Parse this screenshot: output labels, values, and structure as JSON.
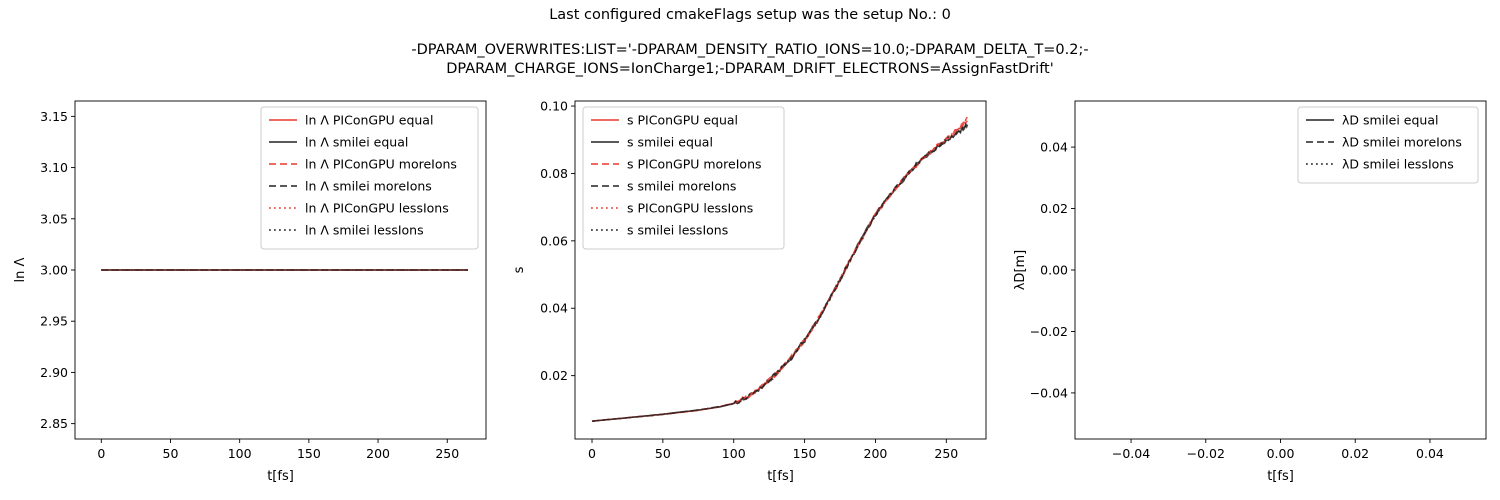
{
  "figure": {
    "title_line1": "Last configured cmakeFlags setup was the setup No.: 0",
    "title_line2": "-DPARAM_OVERWRITES:LIST='-DPARAM_DENSITY_RATIO_IONS=10.0;-DPARAM_DELTA_T=0.2;-",
    "title_line3": "DPARAM_CHARGE_IONS=IonCharge1;-DPARAM_DRIFT_ELECTRONS=AssignFastDrift'"
  },
  "colors": {
    "red": "#e8392e",
    "black": "#222222"
  },
  "chart_data": [
    {
      "type": "line",
      "xlabel": "t[fs]",
      "ylabel": "ln Λ",
      "xlim": [
        -19,
        278
      ],
      "ylim": [
        2.835,
        3.165
      ],
      "xticks": [
        0,
        50,
        100,
        150,
        200,
        250
      ],
      "yticks": [
        2.85,
        2.9,
        2.95,
        3.0,
        3.05,
        3.1,
        3.15
      ],
      "ytick_labels": [
        "2.85",
        "2.90",
        "2.95",
        "3.00",
        "3.05",
        "3.10",
        "3.15"
      ],
      "legend_loc": "upper-right",
      "series": [
        {
          "name": "ln Λ PIConGPU equal",
          "color": "red",
          "dash": "solid",
          "x": [
            0,
            265
          ],
          "y": [
            3.0,
            3.0
          ]
        },
        {
          "name": "ln Λ smilei equal",
          "color": "black",
          "dash": "solid",
          "x": [
            0,
            265
          ],
          "y": [
            3.0,
            3.0
          ]
        },
        {
          "name": "ln Λ PIConGPU moreIons",
          "color": "red",
          "dash": "dashed",
          "x": [
            0,
            265
          ],
          "y": [
            3.0,
            3.0
          ]
        },
        {
          "name": "ln Λ smilei moreIons",
          "color": "black",
          "dash": "dashed",
          "x": [
            0,
            265
          ],
          "y": [
            3.0,
            3.0
          ]
        },
        {
          "name": "ln Λ PIConGPU lessIons",
          "color": "red",
          "dash": "dotted",
          "x": [
            0,
            265
          ],
          "y": [
            3.0,
            3.0
          ]
        },
        {
          "name": "ln Λ smilei lessIons",
          "color": "black",
          "dash": "dotted",
          "x": [
            0,
            265
          ],
          "y": [
            3.0,
            3.0
          ]
        }
      ]
    },
    {
      "type": "line",
      "xlabel": "t[fs]",
      "ylabel": "s",
      "xlim": [
        -12,
        278
      ],
      "ylim": [
        0.0012,
        0.1015
      ],
      "xticks": [
        0,
        50,
        100,
        150,
        200,
        250
      ],
      "yticks": [
        0.02,
        0.04,
        0.06,
        0.08,
        0.1
      ],
      "ytick_labels": [
        "0.02",
        "0.04",
        "0.06",
        "0.08",
        "0.10"
      ],
      "legend_loc": "upper-left",
      "series": [
        {
          "name": "s PIConGPU equal",
          "color": "red",
          "dash": "solid",
          "x": [
            0,
            25,
            50,
            75,
            90,
            100,
            110,
            120,
            130,
            140,
            150,
            160,
            170,
            180,
            190,
            200,
            210,
            220,
            230,
            240,
            250,
            260,
            265
          ],
          "y": [
            0.0065,
            0.0075,
            0.0085,
            0.0097,
            0.0108,
            0.0118,
            0.0138,
            0.0168,
            0.0205,
            0.025,
            0.0305,
            0.037,
            0.0445,
            0.0525,
            0.0605,
            0.0678,
            0.0735,
            0.0785,
            0.083,
            0.0868,
            0.09,
            0.0935,
            0.0955
          ]
        },
        {
          "name": "s smilei equal",
          "color": "black",
          "dash": "solid",
          "x": [
            0,
            25,
            50,
            75,
            90,
            100,
            110,
            120,
            130,
            140,
            150,
            160,
            170,
            180,
            190,
            200,
            210,
            220,
            230,
            240,
            250,
            260,
            265
          ],
          "y": [
            0.0065,
            0.0075,
            0.0086,
            0.0098,
            0.0107,
            0.0117,
            0.0137,
            0.0166,
            0.0207,
            0.0248,
            0.0307,
            0.0368,
            0.0447,
            0.0523,
            0.0607,
            0.0676,
            0.0737,
            0.0783,
            0.0833,
            0.0865,
            0.0898,
            0.0925,
            0.0945
          ]
        },
        {
          "name": "s PIConGPU moreIons",
          "color": "red",
          "dash": "dashed",
          "x": [
            0,
            25,
            50,
            75,
            90,
            100,
            110,
            120,
            130,
            140,
            150,
            160,
            170,
            180,
            190,
            200,
            210,
            220,
            230,
            240,
            250,
            260,
            265
          ],
          "y": [
            0.0065,
            0.0075,
            0.0085,
            0.0097,
            0.0108,
            0.0118,
            0.0139,
            0.0169,
            0.0206,
            0.0252,
            0.0306,
            0.0372,
            0.0446,
            0.0527,
            0.0604,
            0.068,
            0.0733,
            0.0788,
            0.0828,
            0.0871,
            0.0902,
            0.094,
            0.0965
          ]
        },
        {
          "name": "s smilei moreIons",
          "color": "black",
          "dash": "dashed",
          "x": [
            0,
            25,
            50,
            75,
            90,
            100,
            110,
            120,
            130,
            140,
            150,
            160,
            170,
            180,
            190,
            200,
            210,
            220,
            230,
            240,
            250,
            260,
            265
          ],
          "y": [
            0.0065,
            0.0075,
            0.0085,
            0.0098,
            0.0108,
            0.0117,
            0.0136,
            0.0167,
            0.0204,
            0.025,
            0.0304,
            0.037,
            0.0443,
            0.0526,
            0.0603,
            0.0677,
            0.0734,
            0.0786,
            0.0829,
            0.0867,
            0.0897,
            0.0928,
            0.0948
          ]
        },
        {
          "name": "s PIConGPU lessIons",
          "color": "red",
          "dash": "dotted",
          "x": [
            0,
            25,
            50,
            75,
            90,
            100,
            110,
            120,
            130,
            140,
            150,
            160,
            170,
            180,
            190,
            200,
            210,
            220,
            230,
            240,
            250,
            260,
            265
          ],
          "y": [
            0.0065,
            0.0075,
            0.0085,
            0.0097,
            0.0108,
            0.0118,
            0.0138,
            0.0168,
            0.0205,
            0.0251,
            0.0305,
            0.0371,
            0.0445,
            0.0526,
            0.0605,
            0.0679,
            0.0736,
            0.0786,
            0.0831,
            0.0869,
            0.0901,
            0.0938,
            0.0962
          ]
        },
        {
          "name": "s smilei lessIons",
          "color": "black",
          "dash": "dotted",
          "x": [
            0,
            25,
            50,
            75,
            90,
            100,
            110,
            120,
            130,
            140,
            150,
            160,
            170,
            180,
            190,
            200,
            210,
            220,
            230,
            240,
            250,
            260,
            265
          ],
          "y": [
            0.0065,
            0.0075,
            0.0085,
            0.0098,
            0.0108,
            0.0117,
            0.0137,
            0.0166,
            0.0205,
            0.0249,
            0.0306,
            0.0369,
            0.0446,
            0.0524,
            0.0606,
            0.0677,
            0.0736,
            0.0784,
            0.0832,
            0.0866,
            0.0899,
            0.0926,
            0.0946
          ]
        }
      ]
    },
    {
      "type": "line",
      "xlabel": "t[fs]",
      "ylabel": "λD[m]",
      "xlim": [
        -0.055,
        0.055
      ],
      "ylim": [
        -0.055,
        0.055
      ],
      "xticks": [
        -0.04,
        -0.02,
        0.0,
        0.02,
        0.04
      ],
      "xtick_labels": [
        "−0.04",
        "−0.02",
        "0.00",
        "0.02",
        "0.04"
      ],
      "yticks": [
        -0.04,
        -0.02,
        0.0,
        0.02,
        0.04
      ],
      "ytick_labels": [
        "−0.04",
        "−0.02",
        "0.00",
        "0.02",
        "0.04"
      ],
      "legend_loc": "upper-right",
      "series": [
        {
          "name": "λD smilei equal",
          "color": "black",
          "dash": "solid",
          "x": [],
          "y": []
        },
        {
          "name": "λD smilei moreIons",
          "color": "black",
          "dash": "dashed",
          "x": [],
          "y": []
        },
        {
          "name": "λD smilei lessIons",
          "color": "black",
          "dash": "dotted",
          "x": [],
          "y": []
        }
      ]
    }
  ]
}
